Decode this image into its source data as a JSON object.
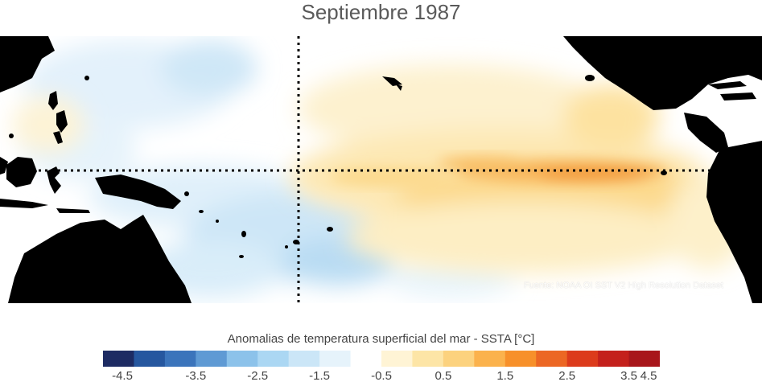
{
  "title": "Septiembre 1987",
  "source": "Fuente: NOAA OI SST V2 High Resolution Dataset",
  "colorbar": {
    "title": "Anomalias de temperatura superficial del mar - SSTA  [°C]",
    "colors": [
      "#1d2b63",
      "#26579f",
      "#3b74bb",
      "#5f9ad4",
      "#8cc2ea",
      "#abd7f3",
      "#cbe6f7",
      "#e6f3fb",
      "#ffffff",
      "#fff4d5",
      "#fde5a6",
      "#fcd27e",
      "#fbb24c",
      "#f7902a",
      "#ec6724",
      "#dc3b1c",
      "#c4201c",
      "#a8161b"
    ],
    "tick_labels": [
      "-4.5",
      "-3.5",
      "-2.5",
      "-1.5",
      "-0.5",
      "0.5",
      "1.5",
      "2.5",
      "3.5",
      "4.5"
    ]
  },
  "colors": {
    "land": "#000000",
    "ocean_neutral": "#ffffff",
    "cool_light": "#d6ebf8",
    "cool": "#b6dbf3",
    "warm_light": "#fdf0c8",
    "warm": "#fbd98c",
    "warm_strong": "#f6a746"
  }
}
